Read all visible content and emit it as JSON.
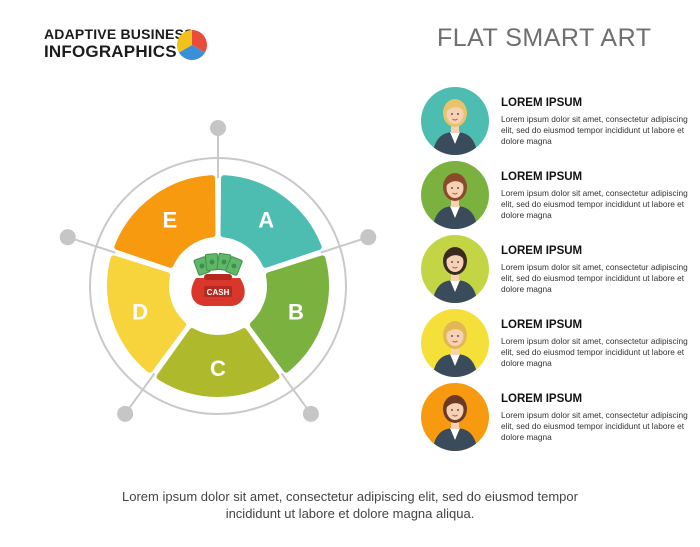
{
  "brand": {
    "line1": "ADAPTIVE BUSINESS",
    "line2": "INFOGRAPHICS",
    "logo_colors": [
      "#3b8ed8",
      "#f2c21a",
      "#e84c3d"
    ]
  },
  "title": "FLAT SMART ART",
  "diagram": {
    "center_icon": "money-bag-icon",
    "center_label": "CASH",
    "segments": [
      {
        "label": "A",
        "color": "#4dbcb1"
      },
      {
        "label": "B",
        "color": "#7bb13f"
      },
      {
        "label": "C",
        "color": "#aeb92c"
      },
      {
        "label": "D",
        "color": "#f7d43c"
      },
      {
        "label": "E",
        "color": "#f79a10"
      }
    ],
    "ring_color": "#c9c9c9"
  },
  "items": [
    {
      "title": "LOREM IPSUM",
      "text": "Lorem ipsum dolor sit amet, consectetur adipiscing elit, sed do eiusmod tempor incididunt ut labore et dolore magna",
      "avatar_color": "#4dbcb1",
      "icon": "businesswoman-presenting-icon"
    },
    {
      "title": "LOREM IPSUM",
      "text": "Lorem ipsum dolor sit amet, consectetur adipiscing elit, sed do eiusmod tempor incididunt ut labore et dolore magna",
      "avatar_color": "#7bb13f",
      "icon": "businesswoman-with-tablet-icon"
    },
    {
      "title": "LOREM IPSUM",
      "text": "Lorem ipsum dolor sit amet, consectetur adipiscing elit, sed do eiusmod tempor incididunt ut labore et dolore magna",
      "avatar_color": "#c3d545",
      "icon": "businesswoman-with-coffee-icon"
    },
    {
      "title": "LOREM IPSUM",
      "text": "Lorem ipsum dolor sit amet, consectetur adipiscing elit, sed do eiusmod tempor incididunt ut labore et dolore magna",
      "avatar_color": "#f5e03a",
      "icon": "businesswoman-thinking-icon"
    },
    {
      "title": "LOREM IPSUM",
      "text": "Lorem ipsum dolor sit amet, consectetur adipiscing elit, sed do eiusmod tempor incididunt ut labore et dolore magna",
      "avatar_color": "#f79a10",
      "icon": "businesswoman-icon"
    }
  ],
  "footer": {
    "line1": "Lorem ipsum dolor sit amet, consectetur adipiscing elit, sed do eiusmod tempor",
    "line2": "incididunt ut labore et dolore magna aliqua."
  }
}
